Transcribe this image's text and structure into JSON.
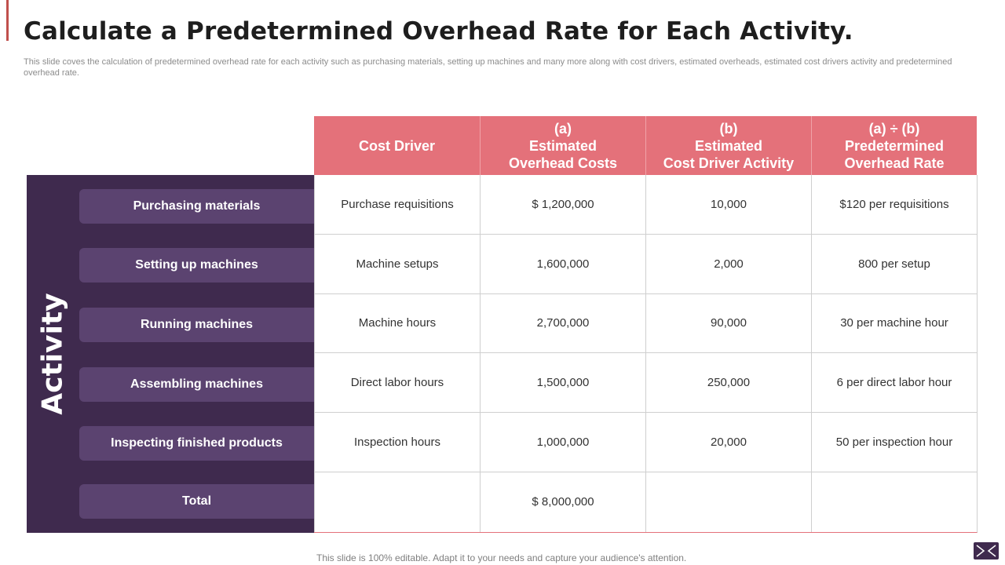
{
  "title": "Calculate a Predetermined Overhead Rate for Each Activity.",
  "subtitle": "This slide coves the calculation of predetermined overhead rate for each activity  such as purchasing materials, setting up machines and many more along with cost drivers, estimated overheads, estimated cost drivers activity and predetermined overhead rate.",
  "activity_label": "Activity",
  "headers": [
    {
      "lines": [
        "Cost Driver"
      ]
    },
    {
      "lines": [
        "(a)",
        "Estimated",
        "Overhead Costs"
      ]
    },
    {
      "lines": [
        "(b)",
        "Estimated",
        "Cost Driver Activity"
      ]
    },
    {
      "lines": [
        "(a)  ÷ (b)",
        "Predetermined",
        "Overhead Rate"
      ]
    }
  ],
  "rows": [
    {
      "activity": "Purchasing materials",
      "cells": [
        "Purchase requisitions",
        "$ 1,200,000",
        "10,000",
        "$120 per requisitions"
      ]
    },
    {
      "activity": "Setting up machines",
      "cells": [
        "Machine setups",
        "1,600,000",
        "2,000",
        "800 per setup"
      ]
    },
    {
      "activity": "Running machines",
      "cells": [
        "Machine hours",
        "2,700,000",
        "90,000",
        "30 per machine hour"
      ]
    },
    {
      "activity": "Assembling machines",
      "cells": [
        "Direct labor hours",
        "1,500,000",
        "250,000",
        "6 per direct labor hour"
      ]
    },
    {
      "activity": "Inspecting finished products",
      "cells": [
        "Inspection hours",
        "1,000,000",
        "20,000",
        "50 per inspection hour"
      ]
    },
    {
      "activity": "Total",
      "cells": [
        "",
        "$ 8,000,000",
        "",
        ""
      ]
    }
  ],
  "footer": "This slide is 100% editable. Adapt it to your needs and capture your audience's attention.",
  "colors": {
    "header": "#e4717a",
    "panel": "#3f2a4e",
    "activity_item": "#5b4370",
    "accent": "#c0504d"
  },
  "icons": {
    "corner": "slide-nav-icon"
  }
}
